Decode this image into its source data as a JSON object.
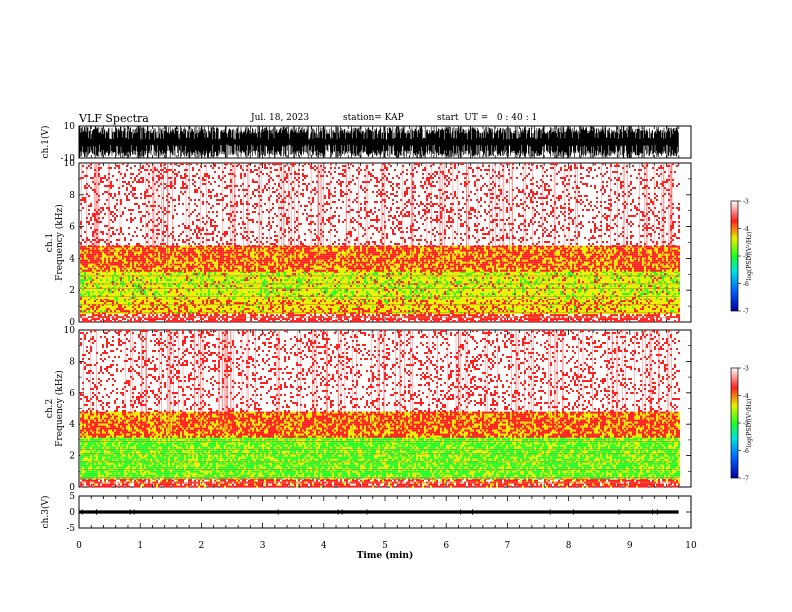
{
  "header": {
    "title": "VLF Spectra",
    "date": "Jul. 18, 2023",
    "station": "station= KAP",
    "start": "start  UT =   0 : 40 : 1"
  },
  "chart_data": [
    {
      "type": "line",
      "name": "ch1-waveform",
      "ylabel": "ch.1(V)",
      "ylim": [
        -10,
        10
      ],
      "yticks": [
        "10",
        "-10"
      ],
      "xlim": [
        0,
        10
      ],
      "data_extent_min": [
        0,
        9.8
      ],
      "description_values": {
        "amplitude_range_v": [
          -10,
          10
        ]
      }
    },
    {
      "type": "heatmap",
      "name": "ch1-spectrogram",
      "ylabel": "ch.1\nFrequency (kHz)",
      "ylabel_line1": "ch.1",
      "ylabel_line2": "Frequency (kHz)",
      "ylim": [
        0,
        10
      ],
      "yticks": [
        "0",
        "2",
        "4",
        "6",
        "8",
        "10"
      ],
      "xlim": [
        0,
        10
      ],
      "data_extent_min": [
        0,
        9.8
      ],
      "bands": [
        {
          "from": 0.0,
          "to": 0.5,
          "level": -3.5
        },
        {
          "from": 0.5,
          "to": 1.5,
          "level": -4.2
        },
        {
          "from": 1.5,
          "to": 3.2,
          "level": -4.4
        },
        {
          "from": 3.2,
          "to": 4.8,
          "level": -3.9
        },
        {
          "from": 4.8,
          "to": 10.0,
          "level": -3.3
        }
      ],
      "colorbar": {
        "label": "log(PSD)(V²/Hz)",
        "range": [
          -7,
          -3
        ],
        "ticks": [
          "-3",
          "-4",
          "-5",
          "-6",
          "-7"
        ]
      }
    },
    {
      "type": "heatmap",
      "name": "ch2-spectrogram",
      "ylabel": "ch.2\nFrequency (kHz)",
      "ylabel_line1": "ch.2",
      "ylabel_line2": "Frequency (kHz)",
      "ylim": [
        0,
        10
      ],
      "yticks": [
        "0",
        "2",
        "4",
        "6",
        "8",
        "10"
      ],
      "xlim": [
        0,
        10
      ],
      "data_extent_min": [
        0,
        9.8
      ],
      "bands": [
        {
          "from": 0.0,
          "to": 0.6,
          "level": -3.6
        },
        {
          "from": 0.6,
          "to": 3.2,
          "level": -4.8
        },
        {
          "from": 3.2,
          "to": 4.8,
          "level": -3.9
        },
        {
          "from": 4.8,
          "to": 10.0,
          "level": -3.3
        }
      ],
      "colorbar": {
        "label": "log(PSD)(V²/Hz)",
        "range": [
          -7,
          -3
        ],
        "ticks": [
          "-3",
          "-4",
          "-5",
          "-6",
          "-7"
        ]
      }
    },
    {
      "type": "line",
      "name": "ch3-waveform",
      "ylabel": "ch.3(V)",
      "ylim": [
        -5,
        5
      ],
      "yticks": [
        "5",
        "0",
        "-5"
      ],
      "xlim": [
        0,
        10
      ],
      "data_extent_min": [
        0,
        9.8
      ],
      "description_values": {
        "amplitude_range_v": [
          -0.5,
          0.5
        ]
      }
    }
  ],
  "xaxis": {
    "label": "Time (min)",
    "ticks": [
      "0",
      "1",
      "2",
      "3",
      "4",
      "5",
      "6",
      "7",
      "8",
      "9",
      "10"
    ]
  },
  "colors": {
    "spectro_stops": [
      "#0000a0",
      "#0060ff",
      "#00e0e0",
      "#20ff20",
      "#e8f000",
      "#ff2020",
      "#ffffff"
    ],
    "line": "#000000"
  }
}
